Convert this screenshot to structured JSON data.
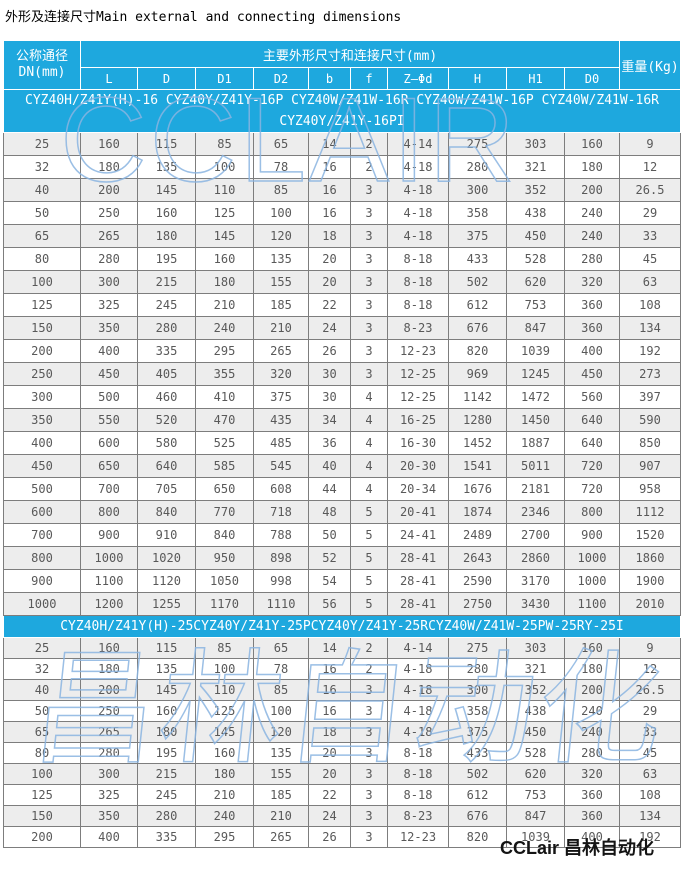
{
  "title": "外形及连接尺寸Main external and connecting dimensions",
  "colors": {
    "header_bg": "#1ea8de",
    "row_alt": "#ededed",
    "border": "#7d7d7d",
    "watermark": "#8ab4e0"
  },
  "watermarks": {
    "top": "CCLAIR",
    "bottom": "昌林自动化",
    "brand": "CCLair 昌林自动化"
  },
  "table": {
    "dn_header_line1": "公称通径",
    "dn_header_line2": "DN(mm)",
    "main_header": "主要外形尺寸和连接尺寸(mm)",
    "weight_header": "重量(Kg)",
    "columns": [
      "L",
      "D",
      "D1",
      "D2",
      "b",
      "f",
      "Z—Φd",
      "H",
      "H1",
      "D0"
    ],
    "sections": [
      {
        "banner_lines": [
          "CYZ40H/Z41Y(H)-16  CYZ40Y/Z41Y-16P  CYZ40W/Z41W-16R  CYZ40W/Z41W-16P CYZ40W/Z41W-16R",
          "CYZ40Y/Z41Y-16PI"
        ],
        "rows": [
          [
            "25",
            "160",
            "115",
            "85",
            "65",
            "14",
            "2",
            "4-14",
            "275",
            "303",
            "160",
            "9"
          ],
          [
            "32",
            "180",
            "135",
            "100",
            "78",
            "16",
            "2",
            "4-18",
            "280",
            "321",
            "180",
            "12"
          ],
          [
            "40",
            "200",
            "145",
            "110",
            "85",
            "16",
            "3",
            "4-18",
            "300",
            "352",
            "200",
            "26.5"
          ],
          [
            "50",
            "250",
            "160",
            "125",
            "100",
            "16",
            "3",
            "4-18",
            "358",
            "438",
            "240",
            "29"
          ],
          [
            "65",
            "265",
            "180",
            "145",
            "120",
            "18",
            "3",
            "4-18",
            "375",
            "450",
            "240",
            "33"
          ],
          [
            "80",
            "280",
            "195",
            "160",
            "135",
            "20",
            "3",
            "8-18",
            "433",
            "528",
            "280",
            "45"
          ],
          [
            "100",
            "300",
            "215",
            "180",
            "155",
            "20",
            "3",
            "8-18",
            "502",
            "620",
            "320",
            "63"
          ],
          [
            "125",
            "325",
            "245",
            "210",
            "185",
            "22",
            "3",
            "8-18",
            "612",
            "753",
            "360",
            "108"
          ],
          [
            "150",
            "350",
            "280",
            "240",
            "210",
            "24",
            "3",
            "8-23",
            "676",
            "847",
            "360",
            "134"
          ],
          [
            "200",
            "400",
            "335",
            "295",
            "265",
            "26",
            "3",
            "12-23",
            "820",
            "1039",
            "400",
            "192"
          ],
          [
            "250",
            "450",
            "405",
            "355",
            "320",
            "30",
            "3",
            "12-25",
            "969",
            "1245",
            "450",
            "273"
          ],
          [
            "300",
            "500",
            "460",
            "410",
            "375",
            "30",
            "4",
            "12-25",
            "1142",
            "1472",
            "560",
            "397"
          ],
          [
            "350",
            "550",
            "520",
            "470",
            "435",
            "34",
            "4",
            "16-25",
            "1280",
            "1450",
            "640",
            "590"
          ],
          [
            "400",
            "600",
            "580",
            "525",
            "485",
            "36",
            "4",
            "16-30",
            "1452",
            "1887",
            "640",
            "850"
          ],
          [
            "450",
            "650",
            "640",
            "585",
            "545",
            "40",
            "4",
            "20-30",
            "1541",
            "5011",
            "720",
            "907"
          ],
          [
            "500",
            "700",
            "705",
            "650",
            "608",
            "44",
            "4",
            "20-34",
            "1676",
            "2181",
            "720",
            "958"
          ],
          [
            "600",
            "800",
            "840",
            "770",
            "718",
            "48",
            "5",
            "20-41",
            "1874",
            "2346",
            "800",
            "1112"
          ],
          [
            "700",
            "900",
            "910",
            "840",
            "788",
            "50",
            "5",
            "24-41",
            "2489",
            "2700",
            "900",
            "1520"
          ],
          [
            "800",
            "1000",
            "1020",
            "950",
            "898",
            "52",
            "5",
            "28-41",
            "2643",
            "2860",
            "1000",
            "1860"
          ],
          [
            "900",
            "1100",
            "1120",
            "1050",
            "998",
            "54",
            "5",
            "28-41",
            "2590",
            "3170",
            "1000",
            "1900"
          ],
          [
            "1000",
            "1200",
            "1255",
            "1170",
            "1110",
            "56",
            "5",
            "28-41",
            "2750",
            "3430",
            "1100",
            "2010"
          ]
        ]
      },
      {
        "banner_lines": [
          "CYZ40H/Z41Y(H)-25CYZ40Y/Z41Y-25PCYZ40Y/Z41Y-25RCYZ40W/Z41W-25PW-25RY-25I"
        ],
        "rows": [
          [
            "25",
            "160",
            "115",
            "85",
            "65",
            "14",
            "2",
            "4-14",
            "275",
            "303",
            "160",
            "9"
          ],
          [
            "32",
            "180",
            "135",
            "100",
            "78",
            "16",
            "2",
            "4-18",
            "280",
            "321",
            "180",
            "12"
          ],
          [
            "40",
            "200",
            "145",
            "110",
            "85",
            "16",
            "3",
            "4-18",
            "300",
            "352",
            "200",
            "26.5"
          ],
          [
            "50",
            "250",
            "160",
            "125",
            "100",
            "16",
            "3",
            "4-18",
            "358",
            "438",
            "240",
            "29"
          ],
          [
            "65",
            "265",
            "180",
            "145",
            "120",
            "18",
            "3",
            "4-18",
            "375",
            "450",
            "240",
            "33"
          ],
          [
            "80",
            "280",
            "195",
            "160",
            "135",
            "20",
            "3",
            "8-18",
            "433",
            "528",
            "280",
            "45"
          ],
          [
            "100",
            "300",
            "215",
            "180",
            "155",
            "20",
            "3",
            "8-18",
            "502",
            "620",
            "320",
            "63"
          ],
          [
            "125",
            "325",
            "245",
            "210",
            "185",
            "22",
            "3",
            "8-18",
            "612",
            "753",
            "360",
            "108"
          ],
          [
            "150",
            "350",
            "280",
            "240",
            "210",
            "24",
            "3",
            "8-23",
            "676",
            "847",
            "360",
            "134"
          ],
          [
            "200",
            "400",
            "335",
            "295",
            "265",
            "26",
            "3",
            "12-23",
            "820",
            "1039",
            "400",
            "192"
          ]
        ]
      }
    ]
  }
}
